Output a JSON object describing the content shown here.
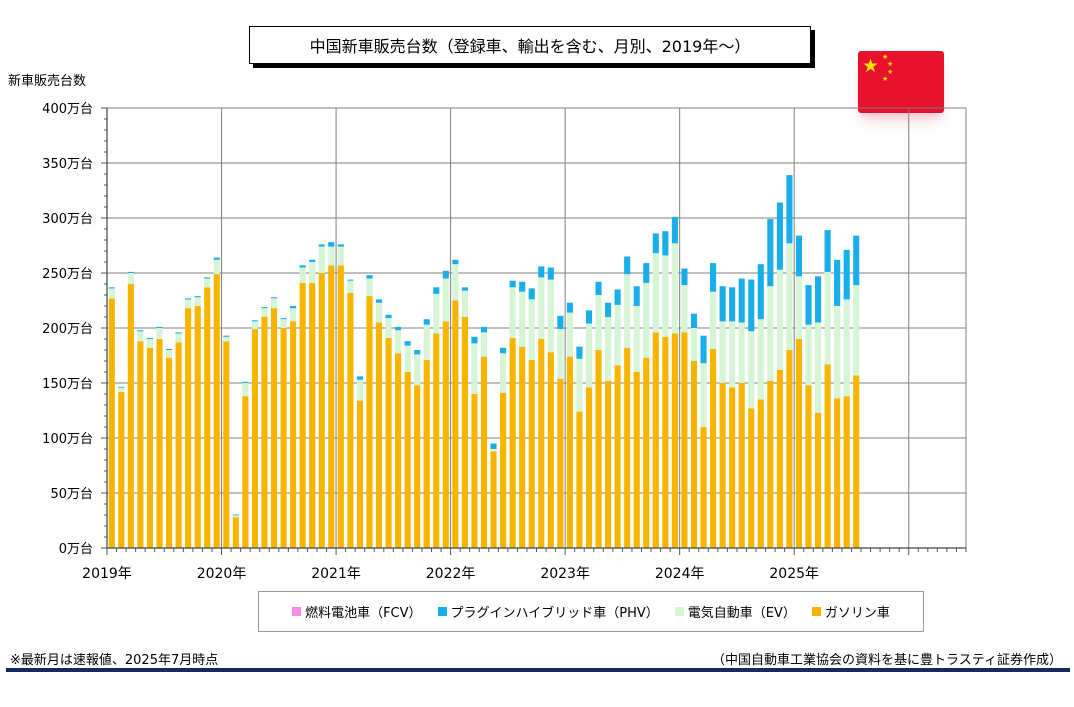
{
  "title": "中国新車販売台数（登録車、輸出を含む、月別、2019年～）",
  "y_axis_label": "新車販売台数",
  "footnote_left": "※最新月は速報値、2025年7月時点",
  "footnote_right": "（中国自動車工業協会の資料を基に豊トラスティ証券作成）",
  "flag_icon": "china-flag-icon",
  "colors": {
    "fcv": "#f08ee8",
    "phv": "#19aeea",
    "ev": "#d5f5d5",
    "gasoline": "#f7b500"
  },
  "chart_data": {
    "type": "bar",
    "stacked": true,
    "unit": "万台",
    "ylim": [
      0,
      400
    ],
    "y_ticks": [
      "0万台",
      "50万台",
      "100万台",
      "150万台",
      "200万台",
      "250万台",
      "300万台",
      "350万台",
      "400万台"
    ],
    "year_labels": [
      "2019年",
      "2020年",
      "2021年",
      "2022年",
      "2023年",
      "2024年",
      "2025年"
    ],
    "months_per_year": 12,
    "grid": true,
    "legend_position": "bottom",
    "legend": [
      "燃料電池車（FCV）",
      "プラグインハイブリッド車（PHV）",
      "電気自動車（EV）",
      "ガソリン車"
    ],
    "series": [
      {
        "name": "燃料電池車（FCV）",
        "color": "#f08ee8",
        "values": [
          0,
          0,
          0,
          0,
          0,
          0,
          0,
          0,
          0,
          0,
          0,
          0,
          0,
          0,
          0,
          0,
          0,
          0,
          0,
          0,
          0,
          0,
          0,
          0,
          0,
          0,
          0,
          0,
          0,
          0,
          0,
          0,
          0,
          0,
          0,
          0,
          0,
          0,
          0,
          0,
          0,
          0,
          0,
          0,
          0,
          0,
          0,
          0,
          0,
          0,
          0,
          0,
          0,
          0,
          0,
          0,
          0,
          0,
          0,
          0,
          0,
          0,
          0,
          0,
          0,
          0,
          0,
          0,
          0,
          0,
          0,
          0,
          0,
          0,
          0,
          0,
          0,
          0,
          0
        ]
      },
      {
        "name": "プラグインハイブリッド車（PHV）",
        "color": "#19aeea",
        "values": [
          1,
          0.5,
          1,
          1,
          1,
          1,
          1,
          1,
          1,
          1,
          1,
          2,
          1,
          0.5,
          1,
          1,
          1,
          1,
          1,
          2,
          2,
          2,
          2,
          4,
          2,
          1,
          3,
          3,
          3,
          3,
          3,
          4,
          4,
          5,
          6,
          7,
          4,
          3,
          6,
          5,
          5,
          5,
          6,
          9,
          10,
          10,
          11,
          12,
          9,
          11,
          12,
          12,
          13,
          14,
          16,
          18,
          18,
          18,
          22,
          24,
          15,
          13,
          25,
          26,
          32,
          31,
          40,
          47,
          50,
          61,
          61,
          62,
          37,
          36,
          42,
          38,
          42,
          45,
          45
        ]
      },
      {
        "name": "電気自動車（EV）",
        "color": "#d5f5d5",
        "values": [
          9,
          4,
          10,
          9,
          8,
          10,
          7,
          8,
          8,
          8,
          8,
          13,
          4,
          2,
          12,
          7,
          8,
          9,
          8,
          12,
          14,
          19,
          24,
          17,
          17,
          11,
          19,
          16,
          18,
          18,
          21,
          24,
          28,
          32,
          36,
          39,
          33,
          24,
          46,
          22,
          2,
          36,
          46,
          50,
          55,
          56,
          66,
          45,
          40,
          48,
          58,
          50,
          58,
          55,
          67,
          60,
          68,
          72,
          74,
          82,
          43,
          30,
          58,
          52,
          56,
          60,
          55,
          70,
          73,
          86,
          91,
          97,
          57,
          55,
          82,
          84,
          84,
          88,
          82
        ]
      },
      {
        "name": "ガソリン車",
        "color": "#f7b500",
        "values": [
          227,
          142,
          240,
          188,
          182,
          190,
          173,
          187,
          218,
          220,
          237,
          249,
          188,
          28,
          138,
          199,
          210,
          218,
          200,
          206,
          241,
          241,
          250,
          257,
          257,
          232,
          134,
          229,
          205,
          191,
          177,
          160,
          148,
          171,
          195,
          206,
          225,
          210,
          140,
          174,
          88,
          141,
          191,
          183,
          171,
          190,
          178,
          154,
          174,
          124,
          146,
          180,
          152,
          166,
          182,
          160,
          173,
          196,
          192,
          195,
          196,
          170,
          110,
          181,
          150,
          146,
          150,
          127,
          135,
          152,
          162,
          180,
          190,
          148,
          123,
          167,
          136,
          138,
          157
        ]
      }
    ]
  }
}
